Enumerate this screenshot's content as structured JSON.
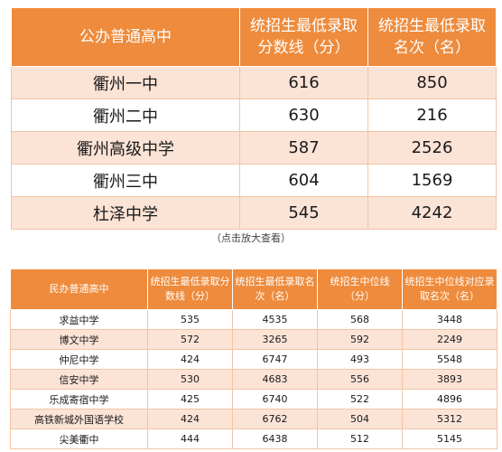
{
  "public_table": {
    "headers": [
      "公办普通高中",
      "统招生最低录取分数线（分）",
      "统招生最低录取名次（名）"
    ],
    "rows": [
      {
        "name": "衢州一中",
        "score": "616",
        "rank": "850"
      },
      {
        "name": "衢州二中",
        "score": "630",
        "rank": "216"
      },
      {
        "name": "衢州高级中学",
        "score": "587",
        "rank": "2526"
      },
      {
        "name": "衢州三中",
        "score": "604",
        "rank": "1569"
      },
      {
        "name": "杜泽中学",
        "score": "545",
        "rank": "4242"
      }
    ]
  },
  "note": "（点击放大查看）",
  "private_table": {
    "headers": [
      "民办普通高中",
      "统招生最低录取分数线（分）",
      "统招生最低录取名次（名）",
      "统招生中位线（分）",
      "统招生中位线对应录取名次（名）"
    ],
    "rows": [
      {
        "name": "求益中学",
        "min_score": "535",
        "min_rank": "4535",
        "median_score": "568",
        "median_rank": "3448"
      },
      {
        "name": "博文中学",
        "min_score": "572",
        "min_rank": "3265",
        "median_score": "592",
        "median_rank": "2249"
      },
      {
        "name": "仲尼中学",
        "min_score": "424",
        "min_rank": "6747",
        "median_score": "493",
        "median_rank": "5548"
      },
      {
        "name": "信安中学",
        "min_score": "530",
        "min_rank": "4683",
        "median_score": "556",
        "median_rank": "3893"
      },
      {
        "name": "乐成寄宿中学",
        "min_score": "425",
        "min_rank": "6740",
        "median_score": "522",
        "median_rank": "4896"
      },
      {
        "name": "高铁新城外国语学校",
        "min_score": "424",
        "min_rank": "6762",
        "median_score": "504",
        "median_rank": "5312"
      },
      {
        "name": "尖美衢中",
        "min_score": "444",
        "min_rank": "6438",
        "median_score": "512",
        "median_rank": "5145"
      }
    ]
  }
}
